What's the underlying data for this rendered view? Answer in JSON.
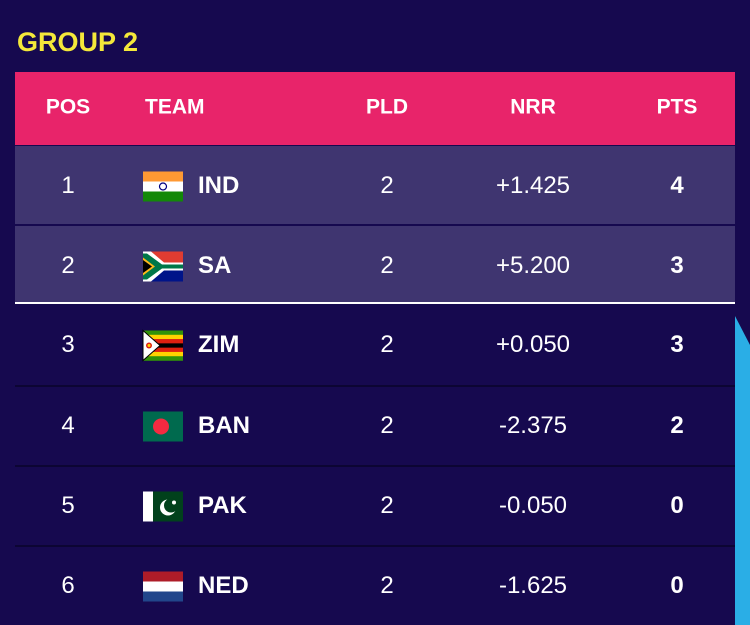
{
  "header": {
    "title": "GROUP 2"
  },
  "table": {
    "columns": [
      "POS",
      "TEAM",
      "PLD",
      "NRR",
      "PTS"
    ],
    "rows": [
      [
        "1",
        "IND",
        "2",
        "+1.425",
        "4"
      ],
      [
        "2",
        "SA",
        "2",
        "+5.200",
        "3"
      ],
      [
        "3",
        "ZIM",
        "2",
        "+0.050",
        "3"
      ],
      [
        "4",
        "BAN",
        "2",
        "-2.375",
        "2"
      ],
      [
        "5",
        "PAK",
        "2",
        "-0.050",
        "0"
      ],
      [
        "6",
        "NED",
        "2",
        "-1.625",
        "0"
      ]
    ]
  }
}
